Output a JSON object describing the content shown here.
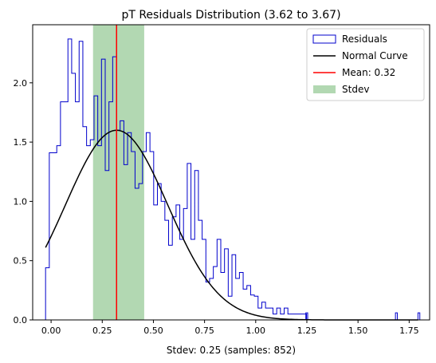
{
  "chart_data": {
    "type": "histogram",
    "title": "pT Residuals Distribution (3.62 to 3.67)",
    "xlabel": "Stdev: 0.25 (samples: 852)",
    "ylabel": "",
    "xlim": [
      -0.09,
      1.85
    ],
    "ylim": [
      0,
      2.49
    ],
    "xticks": [
      "0.00",
      "0.25",
      "0.50",
      "0.75",
      "1.00",
      "1.25",
      "1.50",
      "1.75"
    ],
    "xtick_values": [
      0,
      0.25,
      0.5,
      0.75,
      1.0,
      1.25,
      1.5,
      1.75
    ],
    "yticks": [
      "0.0",
      "0.5",
      "1.0",
      "1.5",
      "2.0"
    ],
    "ytick_values": [
      0,
      0.5,
      1.0,
      1.5,
      2.0
    ],
    "grid": false,
    "legend_position": "top-right",
    "legend": [
      "Residuals",
      "Normal Curve",
      "Mean: 0.32",
      "Stdev"
    ],
    "histogram": {
      "name": "Residuals",
      "color": "#0000cc",
      "bin_edges_start": -0.027,
      "bin_width": 0.01822,
      "heights": [
        0.44,
        1.41,
        1.41,
        1.47,
        1.84,
        1.84,
        2.37,
        2.08,
        1.84,
        2.35,
        1.63,
        1.47,
        1.52,
        1.89,
        1.47,
        2.2,
        1.26,
        1.84,
        2.22,
        1.6,
        1.68,
        1.31,
        1.58,
        1.42,
        1.11,
        1.15,
        1.42,
        1.58,
        1.42,
        0.97,
        1.15,
        1.0,
        0.84,
        0.63,
        0.87,
        0.97,
        0.68,
        0.94,
        1.32,
        0.68,
        1.26,
        0.84,
        0.68,
        0.32,
        0.35,
        0.45,
        0.68,
        0.4,
        0.6,
        0.2,
        0.55,
        0.35,
        0.4,
        0.26,
        0.29,
        0.21,
        0.2,
        0.1,
        0.15,
        0.1,
        0.1,
        0.05,
        0.1,
        0.05,
        0.1,
        0.05,
        0.05,
        0.05,
        0.05,
        0.05
      ]
    },
    "normal_curve": {
      "name": "Normal Curve",
      "color": "#000000",
      "mean": 0.32,
      "stdev": 0.25,
      "peak": 1.6,
      "x_range": [
        -0.027,
        1.793
      ]
    },
    "mean_line": {
      "name": "Mean: 0.32",
      "value": 0.32,
      "color": "#ff0000"
    },
    "stdev_band": {
      "name": "Stdev",
      "from": 0.205,
      "to": 0.455,
      "color": "#b2d8b2"
    },
    "scattered_outliers": {
      "x": [
        1.245,
        1.683,
        1.793
      ],
      "height": 0.06
    }
  }
}
